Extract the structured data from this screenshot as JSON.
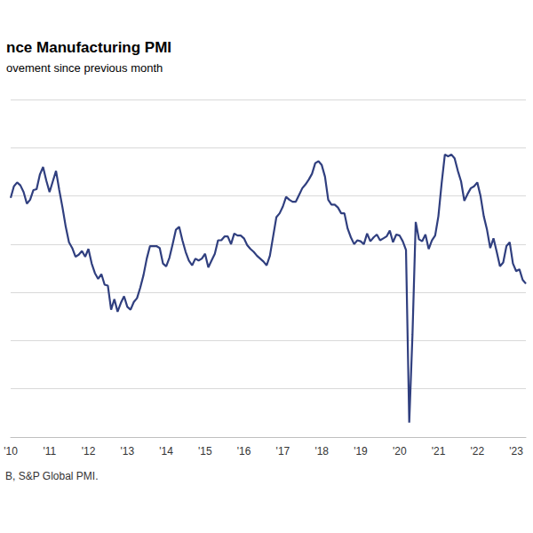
{
  "chart_data": {
    "type": "line",
    "title": "nce Manufacturing PMI",
    "subtitle": "ovement since previous month",
    "annotations": [
      "B, S&P Global PMI."
    ],
    "categories": [
      "'10",
      null,
      null,
      null,
      null,
      null,
      null,
      null,
      null,
      null,
      null,
      null,
      "'11",
      null,
      null,
      null,
      null,
      null,
      null,
      null,
      null,
      null,
      null,
      null,
      "'12",
      null,
      null,
      null,
      null,
      null,
      null,
      null,
      null,
      null,
      null,
      null,
      "'13",
      null,
      null,
      null,
      null,
      null,
      null,
      null,
      null,
      null,
      null,
      null,
      "'14",
      null,
      null,
      null,
      null,
      null,
      null,
      null,
      null,
      null,
      null,
      null,
      "'15",
      null,
      null,
      null,
      null,
      null,
      null,
      null,
      null,
      null,
      null,
      null,
      "'16",
      null,
      null,
      null,
      null,
      null,
      null,
      null,
      null,
      null,
      null,
      null,
      "'17",
      null,
      null,
      null,
      null,
      null,
      null,
      null,
      null,
      null,
      null,
      null,
      "'18",
      null,
      null,
      null,
      null,
      null,
      null,
      null,
      null,
      null,
      null,
      null,
      "'19",
      null,
      null,
      null,
      null,
      null,
      null,
      null,
      null,
      null,
      null,
      null,
      "'20",
      null,
      null,
      null,
      null,
      null,
      null,
      null,
      null,
      null,
      null,
      null,
      "'21",
      null,
      null,
      null,
      null,
      null,
      null,
      null,
      null,
      null,
      null,
      null,
      "'22",
      null,
      null,
      null,
      null,
      null,
      null,
      null,
      null,
      null,
      null,
      null,
      "'23",
      null,
      null,
      null
    ],
    "values": [
      54.8,
      56.0,
      56.4,
      56.1,
      55.4,
      54.2,
      54.6,
      55.6,
      55.7,
      57.2,
      58.0,
      56.6,
      55.4,
      56.5,
      57.6,
      55.6,
      53.8,
      51.8,
      50.2,
      49.6,
      48.7,
      48.9,
      49.3,
      48.7,
      49.5,
      48.0,
      47.0,
      46.4,
      46.9,
      45.8,
      45.7,
      43.2,
      44.3,
      43.0,
      43.9,
      44.6,
      43.5,
      43.2,
      44.0,
      44.4,
      45.5,
      46.8,
      48.5,
      49.8,
      49.8,
      49.8,
      49.6,
      48.0,
      47.7,
      48.6,
      50.0,
      51.5,
      51.8,
      50.4,
      49.2,
      48.3,
      47.8,
      48.5,
      48.3,
      48.5,
      49.0,
      47.6,
      48.3,
      49.0,
      50.4,
      50.4,
      50.8,
      50.8,
      50.0,
      51.1,
      50.9,
      50.9,
      50.6,
      49.9,
      49.5,
      49.2,
      48.8,
      48.5,
      48.2,
      47.8,
      48.8,
      50.8,
      52.8,
      53.2,
      53.9,
      54.9,
      54.6,
      54.4,
      54.4,
      55.1,
      55.8,
      56.2,
      56.7,
      57.3,
      58.4,
      58.6,
      58.2,
      57.0,
      54.6,
      54.1,
      54.1,
      53.8,
      53.2,
      53.2,
      51.6,
      50.7,
      50.0,
      50.4,
      50.3,
      50.0,
      51.1,
      50.3,
      50.7,
      51.0,
      50.4,
      50.6,
      50.8,
      51.4,
      50.2,
      51.0,
      50.9,
      50.3,
      49.4,
      31.5,
      40.6,
      52.3,
      50.5,
      50.3,
      51.0,
      49.5,
      50.4,
      50.9,
      52.9,
      56.3,
      59.3,
      59.1,
      59.3,
      58.9,
      57.6,
      56.5,
      54.5,
      55.2,
      55.8,
      56.0,
      56.4,
      55.0,
      52.9,
      51.5,
      49.6,
      50.6,
      49.2,
      47.7,
      48.1,
      49.8,
      50.2,
      48.0,
      47.2,
      47.4,
      46.3,
      45.9
    ],
    "color": "#303f7f",
    "ylim": [
      30,
      65
    ],
    "yticks": [
      30,
      35,
      40,
      45,
      50,
      55,
      60,
      65
    ],
    "grid": true,
    "tick_labels": "x"
  }
}
